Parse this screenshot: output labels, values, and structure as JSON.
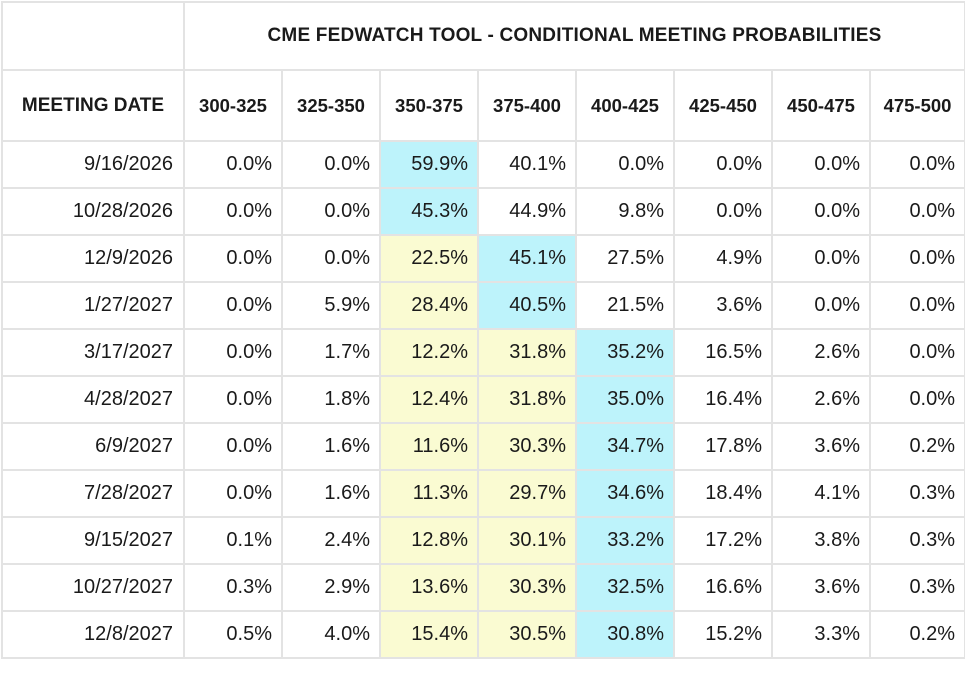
{
  "title": "CME FEDWATCH TOOL - CONDITIONAL MEETING PROBABILITIES",
  "first_col_header": "MEETING DATE",
  "colors": {
    "max_highlight": "#bdf3fb",
    "secondary_highlight": "#fafbd2",
    "grid": "#e3e3e3"
  },
  "chart_data": {
    "type": "table",
    "title": "CME FEDWATCH TOOL - CONDITIONAL MEETING PROBABILITIES",
    "columns": [
      "300-325",
      "325-350",
      "350-375",
      "375-400",
      "400-425",
      "425-450",
      "450-475",
      "475-500"
    ],
    "rows": [
      {
        "date": "9/16/2026",
        "values": [
          "0.0%",
          "0.0%",
          "59.9%",
          "40.1%",
          "0.0%",
          "0.0%",
          "0.0%",
          "0.0%"
        ],
        "highlight": [
          "",
          "",
          "blue",
          "",
          "",
          "",
          "",
          ""
        ]
      },
      {
        "date": "10/28/2026",
        "values": [
          "0.0%",
          "0.0%",
          "45.3%",
          "44.9%",
          "9.8%",
          "0.0%",
          "0.0%",
          "0.0%"
        ],
        "highlight": [
          "",
          "",
          "blue",
          "",
          "",
          "",
          "",
          ""
        ]
      },
      {
        "date": "12/9/2026",
        "values": [
          "0.0%",
          "0.0%",
          "22.5%",
          "45.1%",
          "27.5%",
          "4.9%",
          "0.0%",
          "0.0%"
        ],
        "highlight": [
          "",
          "",
          "yellow",
          "blue",
          "",
          "",
          "",
          ""
        ]
      },
      {
        "date": "1/27/2027",
        "values": [
          "0.0%",
          "5.9%",
          "28.4%",
          "40.5%",
          "21.5%",
          "3.6%",
          "0.0%",
          "0.0%"
        ],
        "highlight": [
          "",
          "",
          "yellow",
          "blue",
          "",
          "",
          "",
          ""
        ]
      },
      {
        "date": "3/17/2027",
        "values": [
          "0.0%",
          "1.7%",
          "12.2%",
          "31.8%",
          "35.2%",
          "16.5%",
          "2.6%",
          "0.0%"
        ],
        "highlight": [
          "",
          "",
          "yellow",
          "yellow",
          "blue",
          "",
          "",
          ""
        ]
      },
      {
        "date": "4/28/2027",
        "values": [
          "0.0%",
          "1.8%",
          "12.4%",
          "31.8%",
          "35.0%",
          "16.4%",
          "2.6%",
          "0.0%"
        ],
        "highlight": [
          "",
          "",
          "yellow",
          "yellow",
          "blue",
          "",
          "",
          ""
        ]
      },
      {
        "date": "6/9/2027",
        "values": [
          "0.0%",
          "1.6%",
          "11.6%",
          "30.3%",
          "34.7%",
          "17.8%",
          "3.6%",
          "0.2%"
        ],
        "highlight": [
          "",
          "",
          "yellow",
          "yellow",
          "blue",
          "",
          "",
          ""
        ]
      },
      {
        "date": "7/28/2027",
        "values": [
          "0.0%",
          "1.6%",
          "11.3%",
          "29.7%",
          "34.6%",
          "18.4%",
          "4.1%",
          "0.3%"
        ],
        "highlight": [
          "",
          "",
          "yellow",
          "yellow",
          "blue",
          "",
          "",
          ""
        ]
      },
      {
        "date": "9/15/2027",
        "values": [
          "0.1%",
          "2.4%",
          "12.8%",
          "30.1%",
          "33.2%",
          "17.2%",
          "3.8%",
          "0.3%"
        ],
        "highlight": [
          "",
          "",
          "yellow",
          "yellow",
          "blue",
          "",
          "",
          ""
        ]
      },
      {
        "date": "10/27/2027",
        "values": [
          "0.3%",
          "2.9%",
          "13.6%",
          "30.3%",
          "32.5%",
          "16.6%",
          "3.6%",
          "0.3%"
        ],
        "highlight": [
          "",
          "",
          "yellow",
          "yellow",
          "blue",
          "",
          "",
          ""
        ]
      },
      {
        "date": "12/8/2027",
        "values": [
          "0.5%",
          "4.0%",
          "15.4%",
          "30.5%",
          "30.8%",
          "15.2%",
          "3.3%",
          "0.2%"
        ],
        "highlight": [
          "",
          "",
          "yellow",
          "yellow",
          "blue",
          "",
          "",
          ""
        ]
      }
    ]
  }
}
